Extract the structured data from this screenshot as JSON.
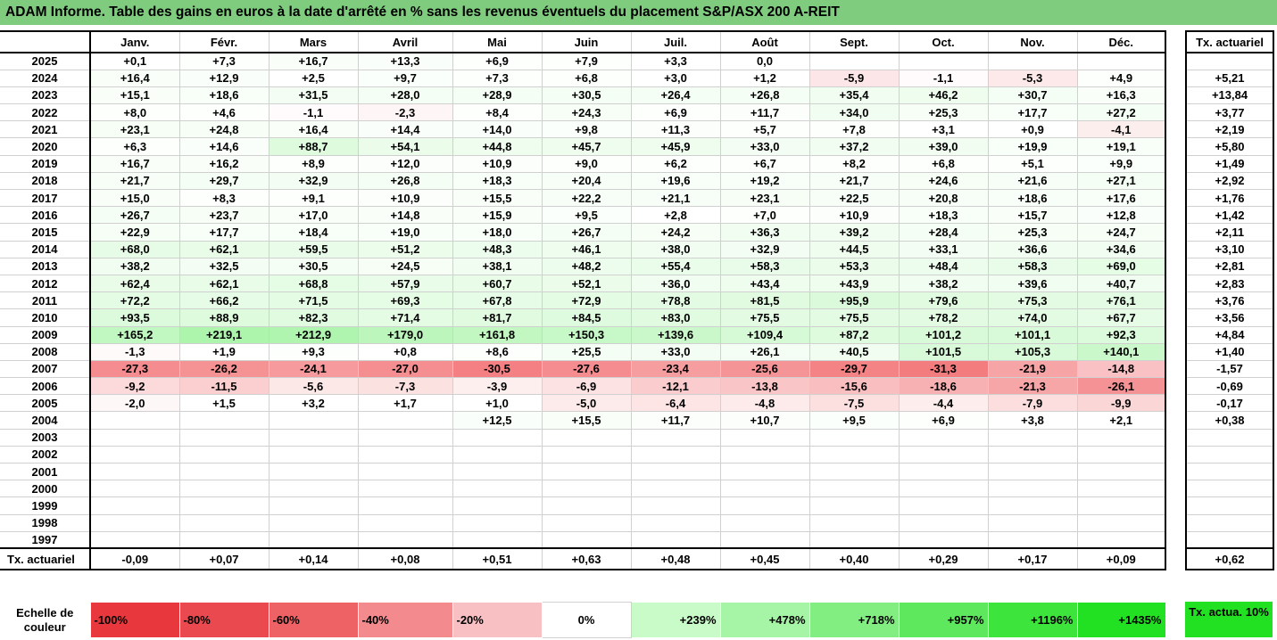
{
  "title": "ADAM Informe. Table des gains en euros à la date d'arrêté en % sans les revenus éventuels du placement S&P/ASX 200 A-REIT",
  "months": [
    "Janv.",
    "Févr.",
    "Mars",
    "Avril",
    "Mai",
    "Juin",
    "Juil.",
    "Août",
    "Sept.",
    "Oct.",
    "Nov.",
    "Déc."
  ],
  "rate_header": "Tx. actuariel",
  "rows": [
    {
      "year": "2025",
      "values": [
        "+0,1",
        "+7,3",
        "+16,7",
        "+13,3",
        "+6,9",
        "+7,9",
        "+3,3",
        "0,0",
        "",
        "",
        "",
        ""
      ],
      "rate": ""
    },
    {
      "year": "2024",
      "values": [
        "+16,4",
        "+12,9",
        "+2,5",
        "+9,7",
        "+7,3",
        "+6,8",
        "+3,0",
        "+1,2",
        "-5,9",
        "-1,1",
        "-5,3",
        "+4,9"
      ],
      "rate": "+5,21"
    },
    {
      "year": "2023",
      "values": [
        "+15,1",
        "+18,6",
        "+31,5",
        "+28,0",
        "+28,9",
        "+30,5",
        "+26,4",
        "+26,8",
        "+35,4",
        "+46,2",
        "+30,7",
        "+16,3"
      ],
      "rate": "+13,84"
    },
    {
      "year": "2022",
      "values": [
        "+8,0",
        "+4,6",
        "-1,1",
        "-2,3",
        "+8,4",
        "+24,3",
        "+6,9",
        "+11,7",
        "+34,0",
        "+25,3",
        "+17,7",
        "+27,2"
      ],
      "rate": "+3,77"
    },
    {
      "year": "2021",
      "values": [
        "+23,1",
        "+24,8",
        "+16,4",
        "+14,4",
        "+14,0",
        "+9,8",
        "+11,3",
        "+5,7",
        "+7,8",
        "+3,1",
        "+0,9",
        "-4,1"
      ],
      "rate": "+2,19"
    },
    {
      "year": "2020",
      "values": [
        "+6,3",
        "+14,6",
        "+88,7",
        "+54,1",
        "+44,8",
        "+45,7",
        "+45,9",
        "+33,0",
        "+37,2",
        "+39,0",
        "+19,9",
        "+19,1"
      ],
      "rate": "+5,80"
    },
    {
      "year": "2019",
      "values": [
        "+16,7",
        "+16,2",
        "+8,9",
        "+12,0",
        "+10,9",
        "+9,0",
        "+6,2",
        "+6,7",
        "+8,2",
        "+6,8",
        "+5,1",
        "+9,9"
      ],
      "rate": "+1,49"
    },
    {
      "year": "2018",
      "values": [
        "+21,7",
        "+29,7",
        "+32,9",
        "+26,8",
        "+18,3",
        "+20,4",
        "+19,6",
        "+19,2",
        "+21,7",
        "+24,6",
        "+21,6",
        "+27,1"
      ],
      "rate": "+2,92"
    },
    {
      "year": "2017",
      "values": [
        "+15,0",
        "+8,3",
        "+9,1",
        "+10,9",
        "+15,5",
        "+22,2",
        "+21,1",
        "+23,1",
        "+22,5",
        "+20,8",
        "+18,6",
        "+17,6"
      ],
      "rate": "+1,76"
    },
    {
      "year": "2016",
      "values": [
        "+26,7",
        "+23,7",
        "+17,0",
        "+14,8",
        "+15,9",
        "+9,5",
        "+2,8",
        "+7,0",
        "+10,9",
        "+18,3",
        "+15,7",
        "+12,8"
      ],
      "rate": "+1,42"
    },
    {
      "year": "2015",
      "values": [
        "+22,9",
        "+17,7",
        "+18,4",
        "+19,0",
        "+18,0",
        "+26,7",
        "+24,2",
        "+36,3",
        "+39,2",
        "+28,4",
        "+25,3",
        "+24,7"
      ],
      "rate": "+2,11"
    },
    {
      "year": "2014",
      "values": [
        "+68,0",
        "+62,1",
        "+59,5",
        "+51,2",
        "+48,3",
        "+46,1",
        "+38,0",
        "+32,9",
        "+44,5",
        "+33,1",
        "+36,6",
        "+34,6"
      ],
      "rate": "+3,10"
    },
    {
      "year": "2013",
      "values": [
        "+38,2",
        "+32,5",
        "+30,5",
        "+24,5",
        "+38,1",
        "+48,2",
        "+55,4",
        "+58,3",
        "+53,3",
        "+48,4",
        "+58,3",
        "+69,0"
      ],
      "rate": "+2,81"
    },
    {
      "year": "2012",
      "values": [
        "+62,4",
        "+62,1",
        "+68,8",
        "+57,9",
        "+60,7",
        "+52,1",
        "+36,0",
        "+43,4",
        "+43,9",
        "+38,2",
        "+39,6",
        "+40,7"
      ],
      "rate": "+2,83"
    },
    {
      "year": "2011",
      "values": [
        "+72,2",
        "+66,2",
        "+71,5",
        "+69,3",
        "+67,8",
        "+72,9",
        "+78,8",
        "+81,5",
        "+95,9",
        "+79,6",
        "+75,3",
        "+76,1"
      ],
      "rate": "+3,76"
    },
    {
      "year": "2010",
      "values": [
        "+93,5",
        "+88,9",
        "+82,3",
        "+71,4",
        "+81,7",
        "+84,5",
        "+83,0",
        "+75,5",
        "+75,5",
        "+78,2",
        "+74,0",
        "+67,7"
      ],
      "rate": "+3,56"
    },
    {
      "year": "2009",
      "values": [
        "+165,2",
        "+219,1",
        "+212,9",
        "+179,0",
        "+161,8",
        "+150,3",
        "+139,6",
        "+109,4",
        "+87,2",
        "+101,2",
        "+101,1",
        "+92,3"
      ],
      "rate": "+4,84"
    },
    {
      "year": "2008",
      "values": [
        "-1,3",
        "+1,9",
        "+9,3",
        "+0,8",
        "+8,6",
        "+25,5",
        "+33,0",
        "+26,1",
        "+40,5",
        "+101,5",
        "+105,3",
        "+140,1"
      ],
      "rate": "+1,40"
    },
    {
      "year": "2007",
      "values": [
        "-27,3",
        "-26,2",
        "-24,1",
        "-27,0",
        "-30,5",
        "-27,6",
        "-23,4",
        "-25,6",
        "-29,7",
        "-31,3",
        "-21,9",
        "-14,8"
      ],
      "rate": "-1,57"
    },
    {
      "year": "2006",
      "values": [
        "-9,2",
        "-11,5",
        "-5,6",
        "-7,3",
        "-3,9",
        "-6,9",
        "-12,1",
        "-13,8",
        "-15,6",
        "-18,6",
        "-21,3",
        "-26,1"
      ],
      "rate": "-0,69"
    },
    {
      "year": "2005",
      "values": [
        "-2,0",
        "+1,5",
        "+3,2",
        "+1,7",
        "+1,0",
        "-5,0",
        "-6,4",
        "-4,8",
        "-7,5",
        "-4,4",
        "-7,9",
        "-9,9"
      ],
      "rate": "-0,17"
    },
    {
      "year": "2004",
      "values": [
        "",
        "",
        "",
        "",
        "+12,5",
        "+15,5",
        "+11,7",
        "+10,7",
        "+9,5",
        "+6,9",
        "+3,8",
        "+2,1"
      ],
      "rate": "+0,38"
    },
    {
      "year": "2003",
      "values": [
        "",
        "",
        "",
        "",
        "",
        "",
        "",
        "",
        "",
        "",
        "",
        ""
      ],
      "rate": ""
    },
    {
      "year": "2002",
      "values": [
        "",
        "",
        "",
        "",
        "",
        "",
        "",
        "",
        "",
        "",
        "",
        ""
      ],
      "rate": ""
    },
    {
      "year": "2001",
      "values": [
        "",
        "",
        "",
        "",
        "",
        "",
        "",
        "",
        "",
        "",
        "",
        ""
      ],
      "rate": ""
    },
    {
      "year": "2000",
      "values": [
        "",
        "",
        "",
        "",
        "",
        "",
        "",
        "",
        "",
        "",
        "",
        ""
      ],
      "rate": ""
    },
    {
      "year": "1999",
      "values": [
        "",
        "",
        "",
        "",
        "",
        "",
        "",
        "",
        "",
        "",
        "",
        ""
      ],
      "rate": ""
    },
    {
      "year": "1998",
      "values": [
        "",
        "",
        "",
        "",
        "",
        "",
        "",
        "",
        "",
        "",
        "",
        ""
      ],
      "rate": ""
    },
    {
      "year": "1997",
      "values": [
        "",
        "",
        "",
        "",
        "",
        "",
        "",
        "",
        "",
        "",
        "",
        ""
      ],
      "rate": ""
    }
  ],
  "footer": {
    "label": "Tx. actuariel",
    "values": [
      "-0,09",
      "+0,07",
      "+0,14",
      "+0,08",
      "+0,51",
      "+0,63",
      "+0,48",
      "+0,45",
      "+0,40",
      "+0,29",
      "+0,17",
      "+0,09"
    ],
    "rate": "+0,62"
  },
  "color_scale": {
    "label": "Echelle de couleur",
    "steps": [
      {
        "label": "-100%",
        "color": "#e8383d"
      },
      {
        "label": "-80%",
        "color": "#ea4a4f"
      },
      {
        "label": "-60%",
        "color": "#ee6266"
      },
      {
        "label": "-40%",
        "color": "#f38a8d"
      },
      {
        "label": "-20%",
        "color": "#f8c0c2"
      },
      {
        "label": "0%",
        "color": "#ffffff"
      },
      {
        "label": "+239%",
        "color": "#c8fbc8"
      },
      {
        "label": "+478%",
        "color": "#a6f5a6"
      },
      {
        "label": "+718%",
        "color": "#82ee82"
      },
      {
        "label": "+957%",
        "color": "#5ee85e"
      },
      {
        "label": "+1196%",
        "color": "#3ce43c"
      },
      {
        "label": "+1435%",
        "color": "#22e022"
      }
    ],
    "side_label": "Tx. actua. 10%",
    "side_color": "#22e022"
  },
  "colors": {
    "title_bg": "#7fcc7f"
  }
}
